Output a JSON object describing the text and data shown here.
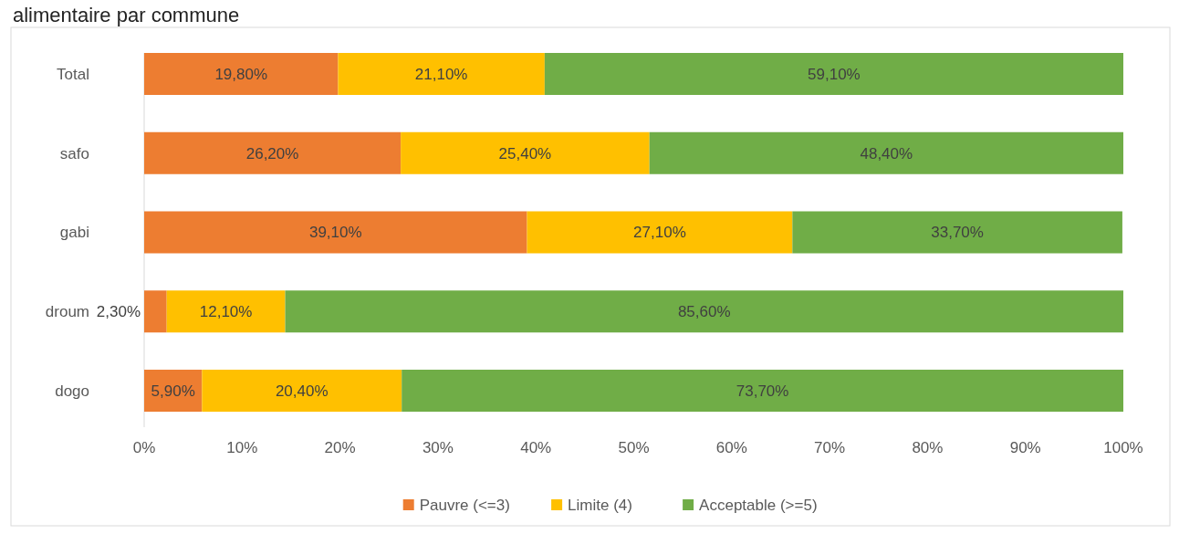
{
  "chart_data": {
    "type": "bar",
    "title": "alimentaire par commune",
    "orientation": "horizontal",
    "stacked": true,
    "categories": [
      "Total",
      "safo",
      "gabi",
      "droum",
      "dogo"
    ],
    "series": [
      {
        "name": "Pauvre (<=3)",
        "color": "#ed7d31",
        "values": [
          19.8,
          26.2,
          39.1,
          2.3,
          5.9
        ],
        "value_labels": [
          "19,80%",
          "26,20%",
          "39,10%",
          "2,30%",
          "5,90%"
        ]
      },
      {
        "name": "Limite (4)",
        "color": "#ffc000",
        "values": [
          21.1,
          25.4,
          27.1,
          12.1,
          20.4
        ],
        "value_labels": [
          "21,10%",
          "25,40%",
          "27,10%",
          "12,10%",
          "20,40%"
        ]
      },
      {
        "name": "Acceptable (>=5)",
        "color": "#70ad47",
        "values": [
          59.1,
          48.4,
          33.7,
          85.6,
          73.7
        ],
        "value_labels": [
          "59,10%",
          "48,40%",
          "33,70%",
          "85,60%",
          "73,70%"
        ]
      }
    ],
    "xlim": [
      0,
      100
    ],
    "xticks": [
      {
        "value": 0,
        "label": "0%"
      },
      {
        "value": 10,
        "label": "10%"
      },
      {
        "value": 20,
        "label": "20%"
      },
      {
        "value": 30,
        "label": "30%"
      },
      {
        "value": 40,
        "label": "40%"
      },
      {
        "value": 50,
        "label": "50%"
      },
      {
        "value": 60,
        "label": "60%"
      },
      {
        "value": 70,
        "label": "70%"
      },
      {
        "value": 80,
        "label": "80%"
      },
      {
        "value": 90,
        "label": "90%"
      },
      {
        "value": 100,
        "label": "100%"
      }
    ],
    "grid": false,
    "legend": "bottom"
  }
}
